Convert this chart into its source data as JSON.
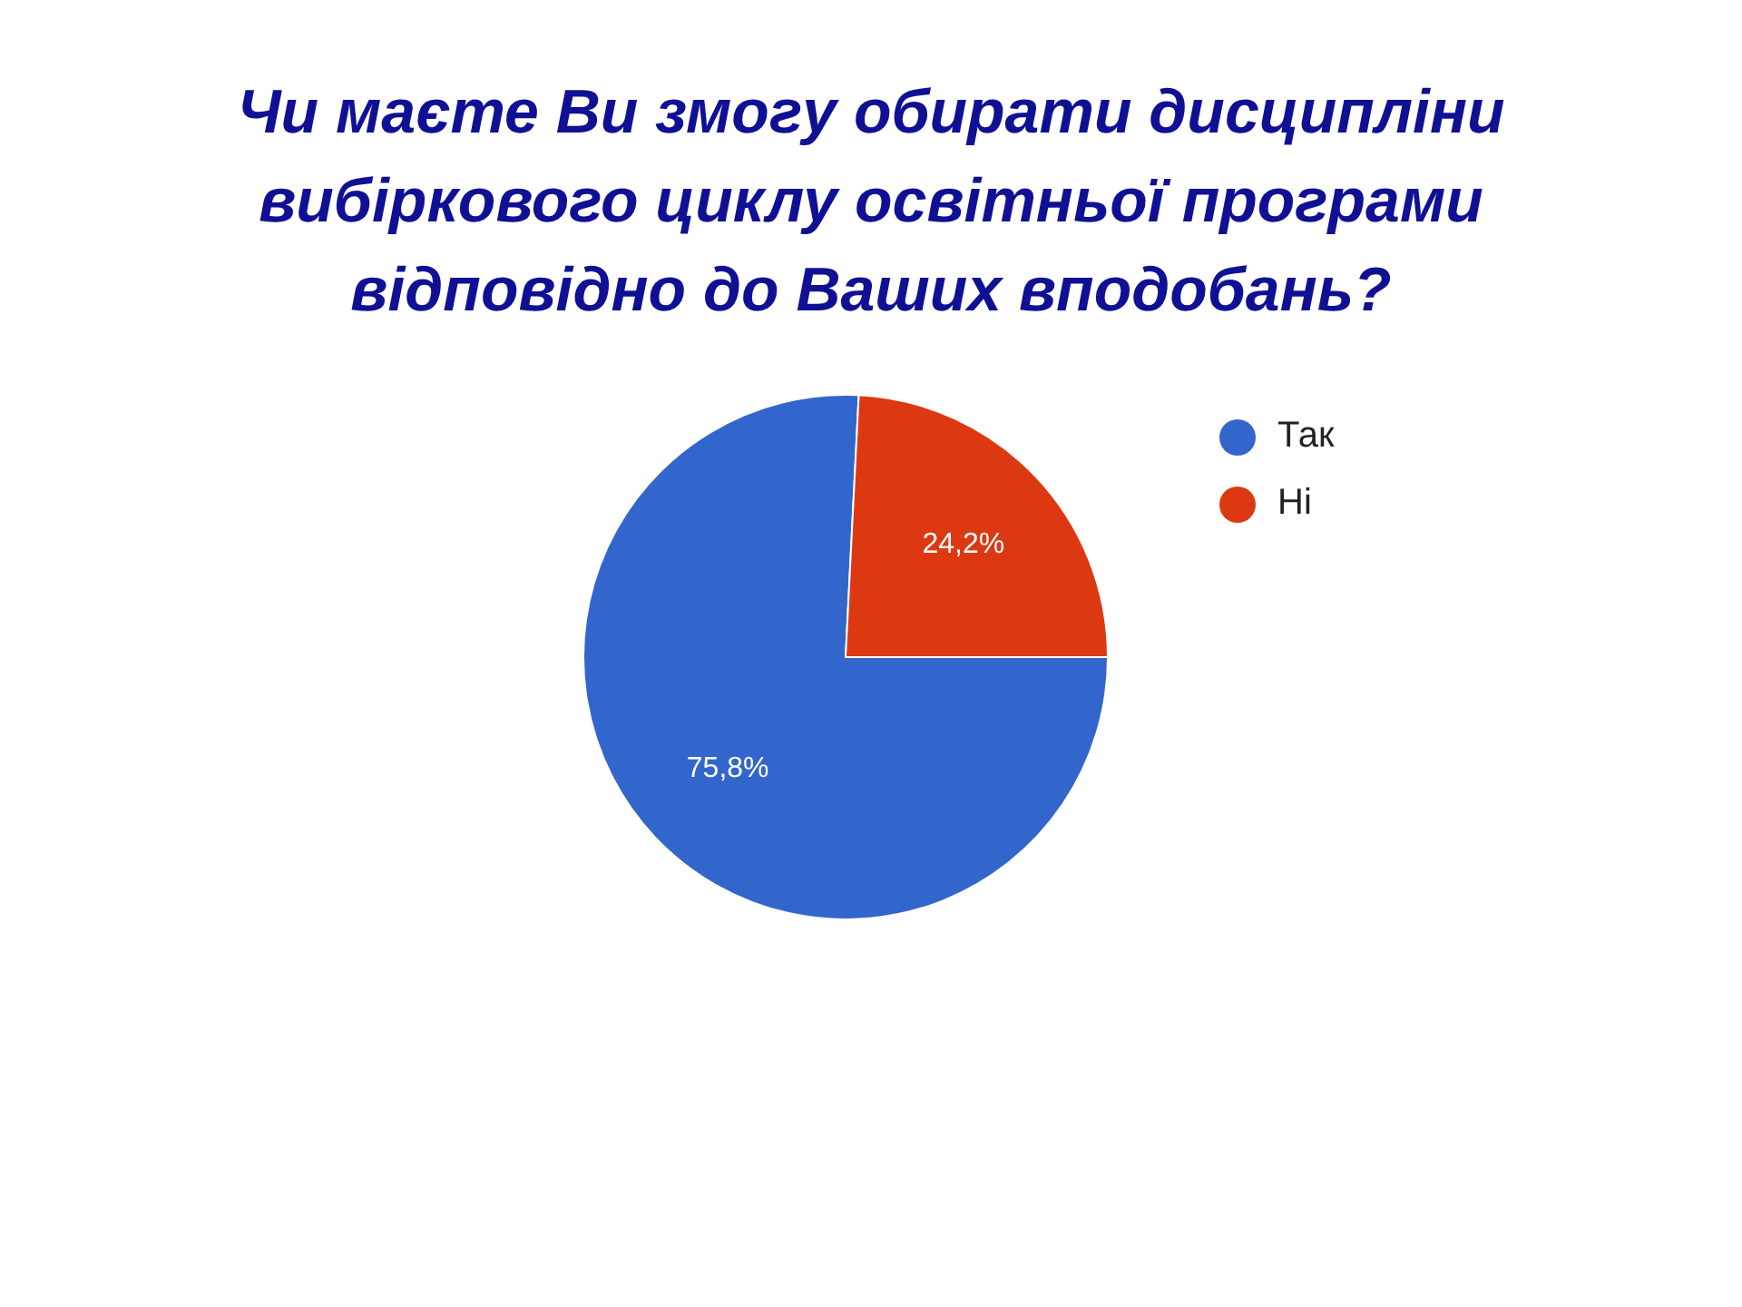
{
  "chart_data": {
    "type": "pie",
    "title": "Чи маєте Ви змогу обирати дисципліни вибіркового циклу освітньої програми відповідно до Ваших вподобань?",
    "categories": [
      "Так",
      "Ні"
    ],
    "values": [
      75.8,
      24.2
    ],
    "colors": [
      "#3366cc",
      "#dc3912"
    ],
    "value_labels": [
      "75,8%",
      "24,2%"
    ],
    "legend": "top right"
  }
}
